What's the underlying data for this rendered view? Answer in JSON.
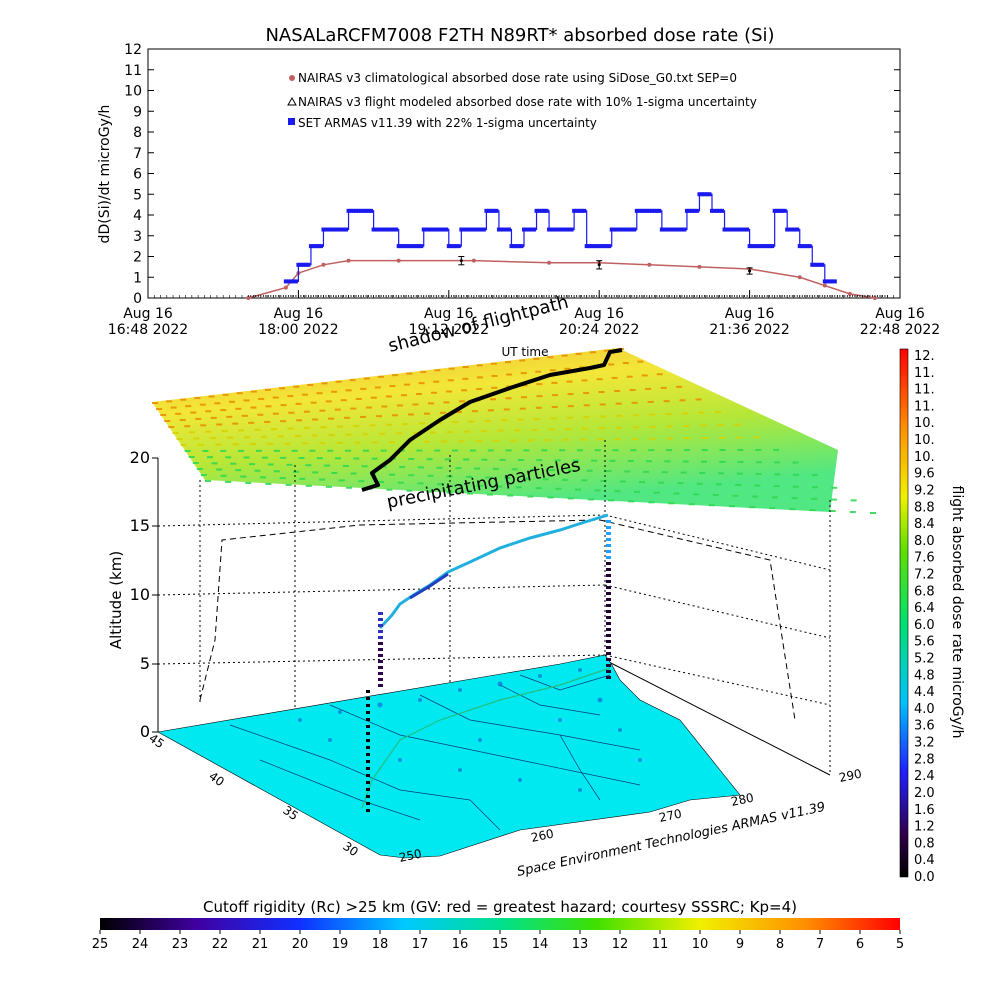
{
  "colors": {
    "nairas_clim": "#c06060",
    "nairas_flight": "#000000",
    "armas": "#1a1aee",
    "flightpath": "#000000",
    "ground": "#00e8f0"
  },
  "chart_data": [
    {
      "type": "line",
      "title": "NASALaRCFM7008  F2TH N89RT* absorbed dose rate (Si)",
      "ylabel": "dD(Si)/dt microGy/h",
      "xlabel": "UT time",
      "ylim": [
        0,
        12
      ],
      "yticks": [
        "0",
        "1",
        "2",
        "3",
        "4",
        "5",
        "6",
        "7",
        "8",
        "9",
        "10",
        "11",
        "12"
      ],
      "xlim_hours": [
        16.8,
        22.8
      ],
      "xticks": [
        {
          "top": "Aug 16",
          "bottom": "16:48 2022",
          "t": 16.8
        },
        {
          "top": "Aug 16",
          "bottom": "18:00 2022",
          "t": 18.0
        },
        {
          "top": "Aug 16",
          "bottom": "19:12 2022",
          "t": 19.2
        },
        {
          "top": "Aug 16",
          "bottom": "20:24 2022",
          "t": 20.4
        },
        {
          "top": "Aug 16",
          "bottom": "21:36 2022",
          "t": 21.6
        },
        {
          "top": "Aug 16",
          "bottom": "22:48 2022",
          "t": 22.8
        }
      ],
      "legend_placement": "top-left",
      "series": [
        {
          "name": "NAIRAS v3 climatological absorbed dose rate using SiDose_G0.txt SEP=0",
          "x": [
            17.6,
            17.9,
            18.0,
            18.2,
            18.4,
            18.8,
            19.4,
            20.0,
            20.4,
            20.8,
            21.2,
            21.6,
            22.0,
            22.2,
            22.4,
            22.6
          ],
          "values": [
            0,
            0.5,
            1.2,
            1.6,
            1.8,
            1.8,
            1.8,
            1.7,
            1.7,
            1.6,
            1.5,
            1.4,
            1.0,
            0.6,
            0.2,
            0
          ]
        },
        {
          "name": "NAIRAS v3 flight modeled absorbed dose rate with 10% 1-sigma uncertainty",
          "x": [
            19.3,
            20.4,
            21.6
          ],
          "values": [
            1.8,
            1.6,
            1.3
          ],
          "errors": [
            0.2,
            0.2,
            0.15
          ]
        },
        {
          "name": "SET ARMAS v11.39 with 22% 1-sigma uncertainty",
          "x": [
            17.9,
            18.0,
            18.1,
            18.2,
            18.3,
            18.4,
            18.5,
            18.6,
            18.7,
            18.8,
            18.9,
            19.0,
            19.1,
            19.2,
            19.3,
            19.4,
            19.5,
            19.6,
            19.7,
            19.8,
            19.9,
            20.0,
            20.1,
            20.2,
            20.3,
            20.4,
            20.5,
            20.6,
            20.7,
            20.8,
            20.9,
            21.0,
            21.1,
            21.2,
            21.3,
            21.4,
            21.5,
            21.6,
            21.7,
            21.8,
            21.9,
            22.0,
            22.1,
            22.2
          ],
          "values": [
            0.8,
            1.6,
            2.5,
            3.3,
            3.3,
            4.2,
            4.2,
            3.3,
            3.3,
            2.5,
            2.5,
            3.3,
            3.3,
            2.5,
            3.3,
            3.3,
            4.2,
            3.3,
            2.5,
            3.3,
            4.2,
            3.3,
            3.3,
            4.2,
            2.5,
            2.5,
            3.3,
            3.3,
            4.2,
            4.2,
            3.3,
            3.3,
            4.2,
            5.0,
            4.2,
            3.3,
            3.3,
            2.5,
            2.5,
            4.2,
            3.3,
            2.5,
            1.6,
            0.8
          ]
        }
      ]
    },
    {
      "type": "scatter",
      "title": "",
      "ylabel": "Altitude (km)",
      "zticks": [
        "0",
        "5",
        "10",
        "15",
        "20"
      ],
      "lat_ticks": [
        "30",
        "35",
        "40",
        "45"
      ],
      "lon_ticks": [
        "250",
        "260",
        "270",
        "280",
        "290"
      ],
      "annotations": [
        "shadow of flightpath",
        "precipitating particles"
      ],
      "credit": "Space Environment Technologies ARMAS v11.39",
      "colorbar": {
        "label": "flight absorbed dose rate microGy/h",
        "ticks": [
          "12.",
          "11.",
          "11.",
          "11.",
          "10.",
          "10.",
          "10.",
          "9.6",
          "9.2",
          "8.8",
          "8.4",
          "8.0",
          "7.6",
          "7.2",
          "6.8",
          "6.4",
          "6.0",
          "5.6",
          "5.2",
          "4.8",
          "4.4",
          "4.0",
          "3.6",
          "3.2",
          "2.8",
          "2.4",
          "2.0",
          "1.6",
          "1.2",
          "0.8",
          "0.4",
          "0.0"
        ]
      }
    },
    {
      "type": "heatmap",
      "title": "Cutoff rigidity (Rc) >25 km (GV: red = greatest hazard; courtesy SSSRC; Kp=4)",
      "ticks": [
        "25",
        "24",
        "23",
        "22",
        "21",
        "20",
        "19",
        "18",
        "17",
        "16",
        "15",
        "14",
        "13",
        "12",
        "11",
        "10",
        "9",
        "8",
        "7",
        "6",
        "5"
      ]
    }
  ]
}
